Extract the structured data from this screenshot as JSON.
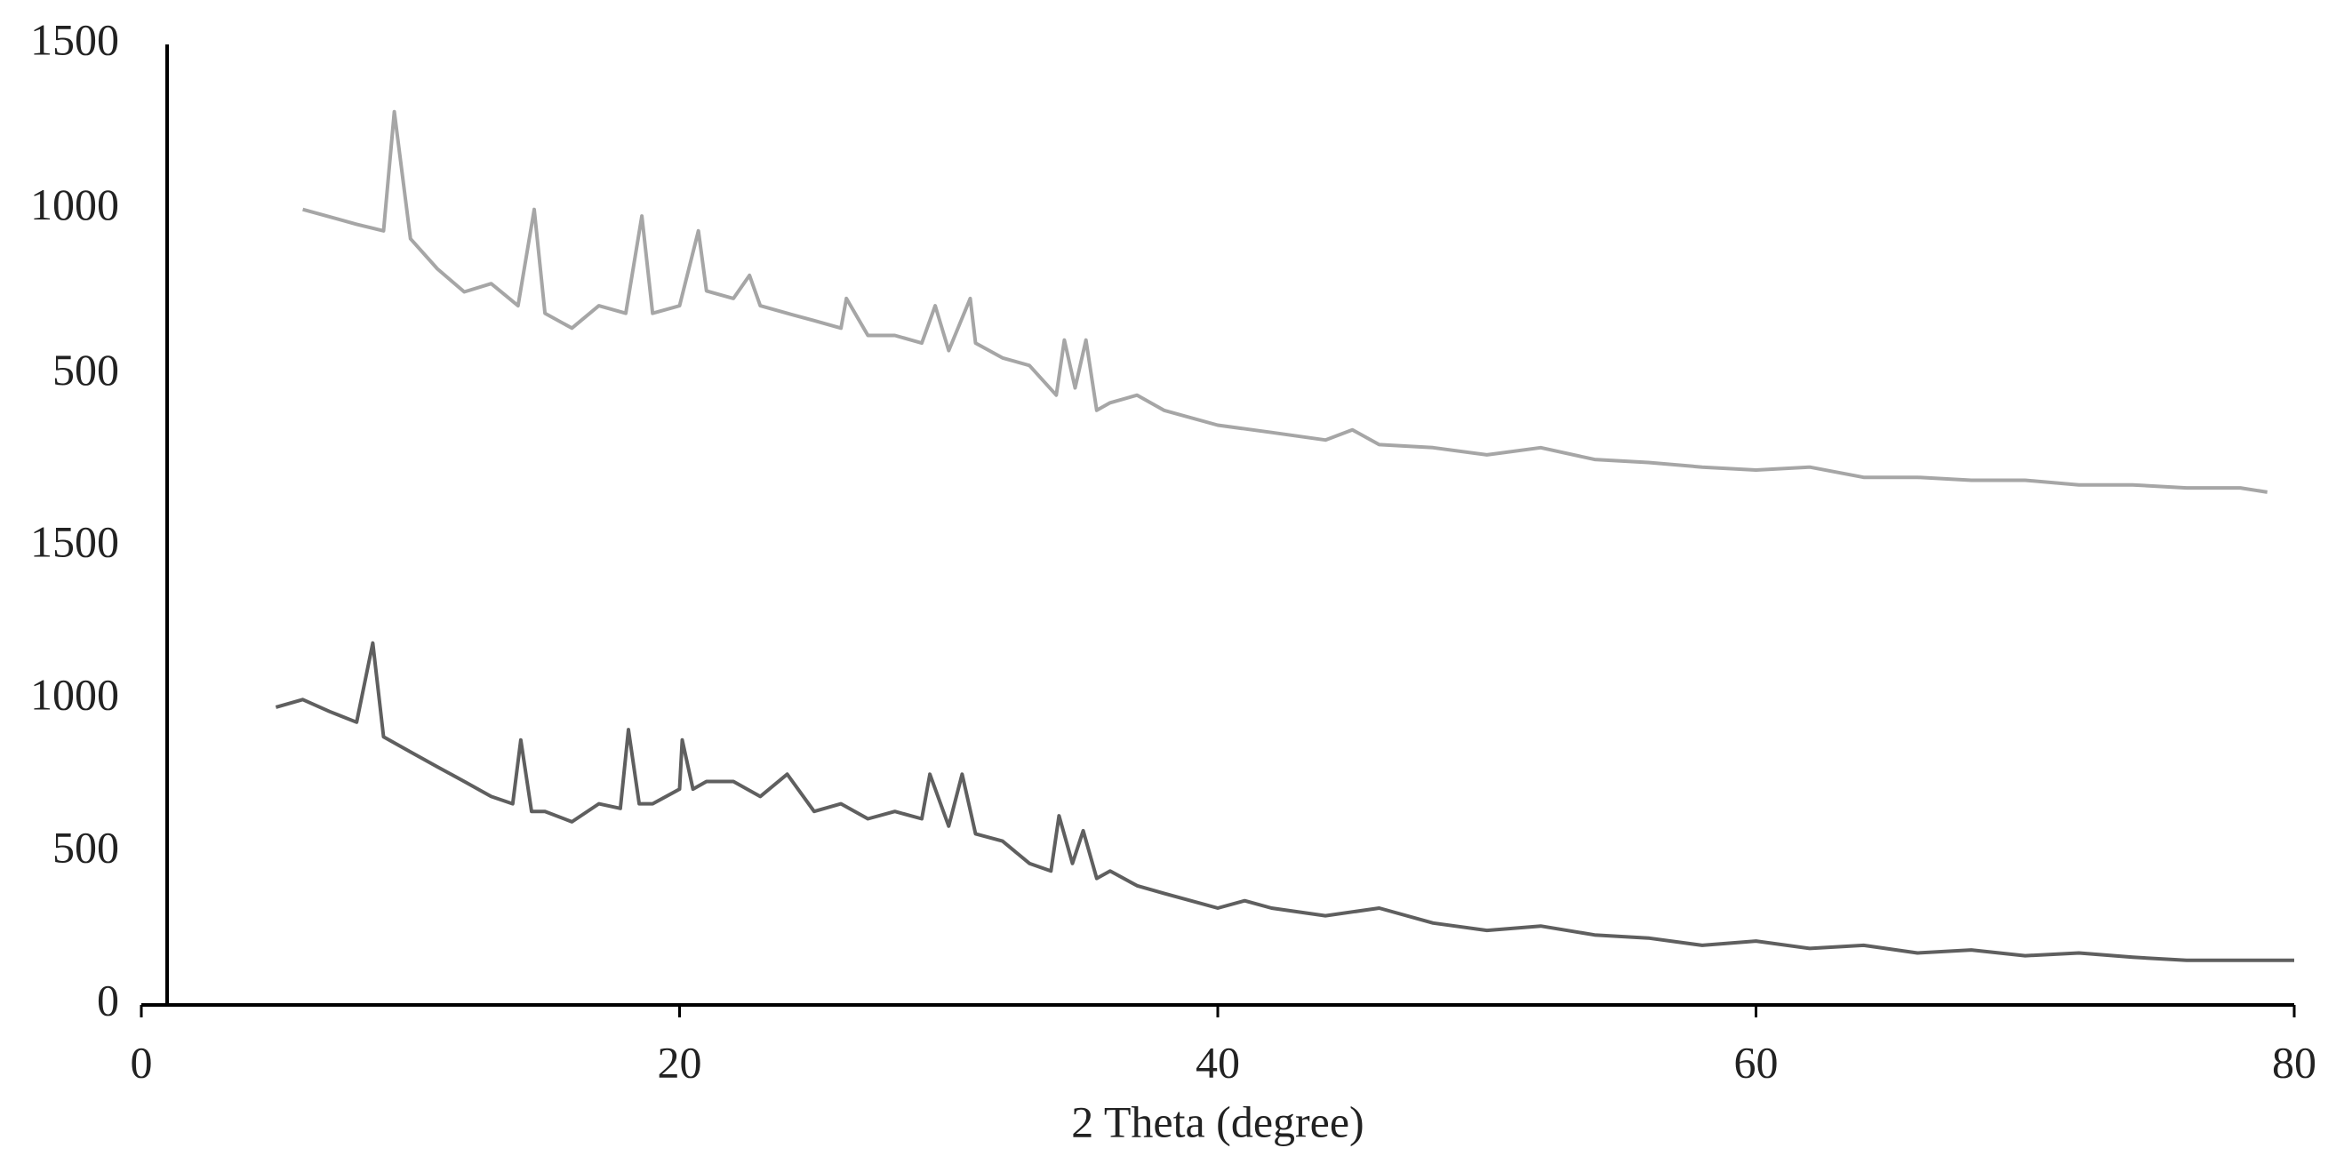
{
  "chart_data": [
    {
      "type": "line",
      "color": "#a6a6a6",
      "x": [
        6,
        8,
        9,
        9.4,
        10,
        11,
        12,
        13,
        14,
        14.6,
        15,
        16,
        17,
        18,
        18.6,
        19,
        20,
        20.7,
        21,
        22,
        22.6,
        23,
        24,
        25,
        26,
        26.2,
        27,
        28,
        29,
        29.5,
        30,
        30.8,
        31,
        32,
        33,
        34,
        34.3,
        34.7,
        35.1,
        35.5,
        36,
        37,
        38,
        40,
        42,
        44,
        45,
        46,
        48,
        50,
        52,
        54,
        56,
        58,
        60,
        62,
        64,
        66,
        68,
        70,
        72,
        74,
        76,
        78,
        79
      ],
      "values": [
        1000,
        955,
        935,
        1296,
        911,
        820,
        750,
        775,
        708,
        1000,
        685,
        640,
        708,
        685,
        980,
        685,
        708,
        935,
        753,
        730,
        800,
        708,
        685,
        663,
        640,
        730,
        618,
        618,
        595,
        708,
        572,
        730,
        595,
        550,
        527,
        437,
        604,
        459,
        604,
        391,
        414,
        437,
        391,
        346,
        324,
        301,
        332,
        287,
        278,
        256,
        278,
        242,
        233,
        219,
        210,
        219,
        188,
        188,
        179,
        179,
        165,
        165,
        156,
        156,
        143
      ],
      "xlim": [
        0,
        80
      ],
      "ylim": [
        0,
        1500
      ],
      "yticks": [
        500,
        1000,
        1500
      ]
    },
    {
      "type": "line",
      "color": "#5f5f5f",
      "x": [
        5,
        6,
        7,
        8,
        8.6,
        9,
        10,
        11,
        12,
        13,
        13.8,
        14.1,
        14.5,
        15,
        16,
        17,
        17.8,
        18.1,
        18.5,
        19,
        20,
        20.1,
        20.5,
        21,
        22,
        23,
        24,
        25,
        26,
        27,
        28,
        29,
        29.3,
        30,
        30.5,
        31,
        32,
        33,
        33.8,
        34.1,
        34.6,
        35,
        35.5,
        36,
        37,
        38,
        40,
        41,
        42,
        44,
        46,
        48,
        50,
        52,
        54,
        56,
        58,
        60,
        62,
        64,
        66,
        68,
        70,
        72,
        74,
        76,
        78,
        80
      ],
      "values": [
        974,
        999,
        960,
        925,
        1184,
        877,
        828,
        779,
        731,
        682,
        658,
        867,
        633,
        633,
        599,
        658,
        643,
        901,
        658,
        658,
        706,
        867,
        706,
        731,
        731,
        682,
        755,
        633,
        658,
        609,
        633,
        609,
        755,
        585,
        755,
        560,
        536,
        463,
        438,
        619,
        463,
        570,
        414,
        438,
        390,
        365,
        317,
        341,
        317,
        292,
        317,
        268,
        244,
        258,
        229,
        219,
        195,
        209,
        185,
        195,
        170,
        180,
        161,
        170,
        156,
        146,
        146,
        146
      ],
      "xlim": [
        0,
        80
      ],
      "ylim": [
        0,
        1500
      ],
      "yticks": [
        0,
        500,
        1000,
        1500
      ],
      "xticks": [
        0,
        20,
        40,
        60,
        80
      ],
      "xlabel": "2 Theta (degree)"
    }
  ]
}
